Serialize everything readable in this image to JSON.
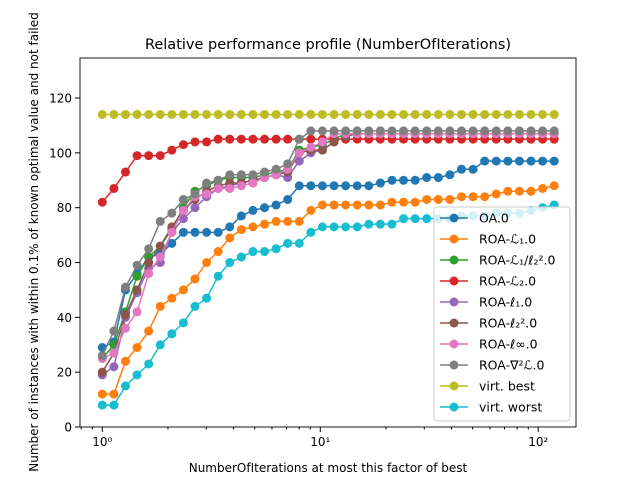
{
  "chart_data": {
    "type": "line",
    "title": "Relative performance profile (NumberOfIterations)",
    "xlabel": "NumberOfIterations at most this factor of best",
    "ylabel": "Number of instances with within 0.1% of known optimal value and not failed",
    "xscale": "log",
    "xlim": [
      0.79,
      149
    ],
    "ylim": [
      0,
      134.6
    ],
    "x_ticks": [
      {
        "value": 1,
        "label": "10⁰"
      },
      {
        "value": 10,
        "label": "10¹"
      },
      {
        "value": 100,
        "label": "10²"
      }
    ],
    "y_ticks": [
      0,
      20,
      40,
      60,
      80,
      100,
      120
    ],
    "x_ratio": 1.1302,
    "n_points": 40,
    "legend_position": "lower-right",
    "series": [
      {
        "name": "OA.0",
        "color": "#1f77b4",
        "values": [
          29,
          31,
          50,
          56,
          62,
          63,
          67,
          71,
          71,
          71,
          71,
          73,
          77,
          79,
          80,
          81,
          83,
          88,
          88,
          88,
          88,
          88,
          88,
          88,
          89,
          90,
          90,
          90,
          91,
          91,
          92,
          94,
          94,
          97,
          97,
          97,
          97,
          97,
          97,
          97
        ]
      },
      {
        "name": "ROA-ℒ₁.0",
        "color": "#ff7f0e",
        "values": [
          12,
          12,
          24,
          29,
          35,
          44,
          47,
          50,
          54,
          60,
          64,
          69,
          72,
          73,
          74,
          75,
          75,
          75,
          79,
          81,
          81,
          81,
          81,
          81,
          81,
          82,
          82,
          82,
          83,
          83,
          83,
          84,
          84,
          84,
          85,
          86,
          86,
          86,
          87,
          88
        ]
      },
      {
        "name": "ROA-ℒ₁/ℓ₂².0",
        "color": "#2ca02c",
        "values": [
          25,
          30,
          42,
          55,
          62,
          66,
          72,
          80,
          86,
          88,
          90,
          91,
          91,
          91,
          92,
          93,
          94,
          101,
          102,
          103,
          105,
          107,
          107,
          107,
          107,
          107,
          107,
          107,
          107,
          107,
          107,
          107,
          107,
          107,
          107,
          107,
          107,
          107,
          107,
          107
        ]
      },
      {
        "name": "ROA-ℒ₂.0",
        "color": "#d62728",
        "values": [
          82,
          87,
          93,
          99,
          99,
          99,
          101,
          103,
          104,
          104,
          105,
          105,
          105,
          105,
          105,
          105,
          105,
          105,
          105,
          105,
          105,
          105,
          105,
          105,
          105,
          105,
          105,
          105,
          105,
          105,
          105,
          105,
          105,
          105,
          105,
          105,
          105,
          105,
          105,
          105
        ]
      },
      {
        "name": "ROA-ℓ₁.0",
        "color": "#9467bd",
        "values": [
          19,
          22,
          40,
          49,
          58,
          60,
          71,
          76,
          80,
          84,
          87,
          88,
          89,
          90,
          91,
          92,
          91,
          97,
          100,
          101,
          104,
          106,
          107,
          107,
          107,
          107,
          107,
          107,
          107,
          107,
          107,
          107,
          107,
          107,
          107,
          107,
          107,
          107,
          107,
          107
        ]
      },
      {
        "name": "ROA-ℓ₂².0",
        "color": "#8c564b",
        "values": [
          20,
          27,
          41,
          50,
          60,
          66,
          73,
          79,
          83,
          86,
          88,
          89,
          89,
          90,
          91,
          92,
          93,
          100,
          101,
          101,
          104,
          106,
          107,
          107,
          107,
          107,
          107,
          107,
          107,
          107,
          107,
          107,
          107,
          107,
          107,
          107,
          107,
          107,
          107,
          107
        ]
      },
      {
        "name": "ROA-ℓ∞.0",
        "color": "#e377c2",
        "values": [
          25,
          27,
          36,
          42,
          56,
          62,
          71,
          79,
          84,
          85,
          87,
          87,
          88,
          89,
          91,
          92,
          94,
          100,
          102,
          104,
          107,
          107,
          107,
          107,
          107,
          107,
          107,
          107,
          107,
          107,
          107,
          107,
          107,
          107,
          107,
          107,
          107,
          107,
          107,
          107
        ]
      },
      {
        "name": "ROA-∇²ℒ.0",
        "color": "#7f7f7f",
        "values": [
          26,
          35,
          51,
          59,
          65,
          75,
          78,
          83,
          85,
          89,
          90,
          92,
          92,
          92,
          93,
          94,
          96,
          105,
          108,
          108,
          108,
          108,
          108,
          108,
          108,
          108,
          108,
          108,
          108,
          108,
          108,
          108,
          108,
          108,
          108,
          108,
          108,
          108,
          108,
          108
        ]
      },
      {
        "name": "virt. best",
        "color": "#bcbd22",
        "values": [
          114,
          114,
          114,
          114,
          114,
          114,
          114,
          114,
          114,
          114,
          114,
          114,
          114,
          114,
          114,
          114,
          114,
          114,
          114,
          114,
          114,
          114,
          114,
          114,
          114,
          114,
          114,
          114,
          114,
          114,
          114,
          114,
          114,
          114,
          114,
          114,
          114,
          114,
          114,
          114
        ]
      },
      {
        "name": "virt. worst",
        "color": "#17becf",
        "values": [
          8,
          8,
          15,
          19,
          23,
          30,
          34,
          38,
          44,
          47,
          55,
          60,
          62,
          64,
          64,
          65,
          67,
          67,
          71,
          73,
          73,
          73,
          73,
          74,
          74,
          74,
          76,
          76,
          76,
          76,
          76,
          77,
          77,
          77,
          78,
          78,
          78,
          79,
          80,
          81
        ]
      }
    ]
  }
}
